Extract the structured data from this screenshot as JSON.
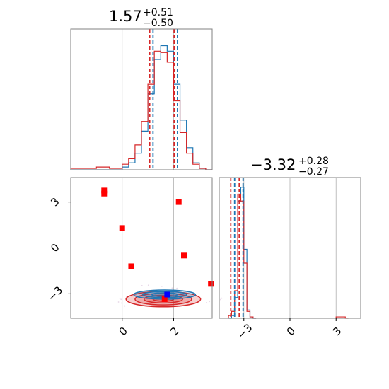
{
  "colors": {
    "blue": "#1f77b4",
    "red": "#d62728",
    "grid": "#b0b0b0",
    "frame": "#808080",
    "marker_red": "#ff0000",
    "marker_blue": "#0000ff"
  },
  "titles": {
    "p1": {
      "main": "1.57",
      "sup": "+0.51",
      "sub": "−0.50"
    },
    "p2": {
      "main": "−3.32",
      "sup": "+0.28",
      "sub": "−0.27"
    }
  },
  "chart_data": [
    {
      "type": "histogram",
      "panel": "marginal-p1",
      "xlim": [
        -2.0,
        3.5
      ],
      "grid": true,
      "series": [
        {
          "name": "",
          "color": "#1f77b4",
          "x": [
            -2.0,
            -1.75,
            -1.5,
            -1.25,
            -1.0,
            -0.75,
            -0.5,
            -0.25,
            0.0,
            0.25,
            0.5,
            0.75,
            1.0,
            1.25,
            1.5,
            1.75,
            2.0,
            2.25,
            2.5,
            2.75,
            3.0,
            3.25
          ],
          "values": [
            0,
            0,
            0,
            0,
            0,
            0,
            0,
            0,
            0.02,
            0.05,
            0.12,
            0.28,
            0.55,
            0.8,
            0.9,
            0.86,
            0.62,
            0.36,
            0.16,
            0.05,
            0.01,
            0
          ]
        },
        {
          "name": "",
          "color": "#d62728",
          "x": [
            -2.0,
            -1.75,
            -1.5,
            -1.25,
            -1.0,
            -0.75,
            -0.5,
            -0.25,
            0.0,
            0.25,
            0.5,
            0.75,
            1.0,
            1.25,
            1.5,
            1.75,
            2.0,
            2.25,
            2.5,
            2.75,
            3.0,
            3.25
          ],
          "values": [
            0.01,
            0.01,
            0.01,
            0.01,
            0.02,
            0.02,
            0.01,
            0.01,
            0.04,
            0.08,
            0.18,
            0.35,
            0.62,
            0.86,
            0.85,
            0.78,
            0.5,
            0.27,
            0.12,
            0.04,
            0.01,
            0
          ]
        }
      ],
      "quantile_lines": {
        "blue": [
          1.2,
          2.15
        ],
        "red": [
          1.07,
          2.02
        ]
      }
    },
    {
      "type": "scatter",
      "panel": "joint-p1-p2",
      "xlim": [
        -2.0,
        3.5
      ],
      "ylim": [
        -4.6,
        4.6
      ],
      "xticks": [
        0,
        2
      ],
      "yticks": [
        3,
        0,
        -3
      ],
      "grid": true,
      "red_square_points": [
        [
          -0.7,
          3.75
        ],
        [
          -0.7,
          3.55
        ],
        [
          0.0,
          1.3
        ],
        [
          0.35,
          -1.2
        ],
        [
          2.2,
          3.0
        ],
        [
          2.4,
          -0.5
        ],
        [
          3.45,
          -2.35
        ],
        [
          1.65,
          -3.35
        ]
      ],
      "blue_square_points": [
        [
          1.75,
          -3.05
        ]
      ],
      "contours": [
        {
          "color": "#d62728",
          "center": [
            1.6,
            -3.35
          ],
          "radii": [
            [
              1.45,
              0.5
            ],
            [
              1.1,
              0.38
            ],
            [
              0.75,
              0.25
            ],
            [
              0.4,
              0.14
            ]
          ]
        },
        {
          "color": "#1f77b4",
          "center": [
            1.65,
            -3.05
          ],
          "radii": [
            [
              1.2,
              0.3
            ],
            [
              0.85,
              0.2
            ],
            [
              0.5,
              0.12
            ]
          ]
        }
      ]
    },
    {
      "type": "histogram",
      "panel": "marginal-p2",
      "xlim": [
        -4.6,
        4.6
      ],
      "xticks": [
        -3,
        0,
        3
      ],
      "grid": true,
      "series": [
        {
          "name": "",
          "color": "#1f77b4",
          "x": [
            -4.0,
            -3.8,
            -3.6,
            -3.4,
            -3.2,
            -3.0,
            -2.8,
            -2.6,
            -2.4
          ],
          "values": [
            0,
            0.02,
            0.15,
            0.85,
            0.95,
            0.5,
            0.06,
            0.01,
            0
          ]
        },
        {
          "name": "",
          "color": "#d62728",
          "x": [
            -4.0,
            -3.8,
            -3.6,
            -3.4,
            -3.2,
            -3.0,
            -2.8,
            -2.6,
            -2.4,
            3.0,
            3.2,
            3.4,
            3.6
          ],
          "values": [
            0.02,
            0.05,
            0.2,
            0.9,
            0.85,
            0.4,
            0.05,
            0.01,
            0,
            0.01,
            0.01,
            0.01,
            0
          ]
        }
      ],
      "quantile_lines": {
        "blue": [
          -3.6,
          -3.05
        ],
        "red": [
          -3.85,
          -3.3
        ]
      }
    }
  ]
}
